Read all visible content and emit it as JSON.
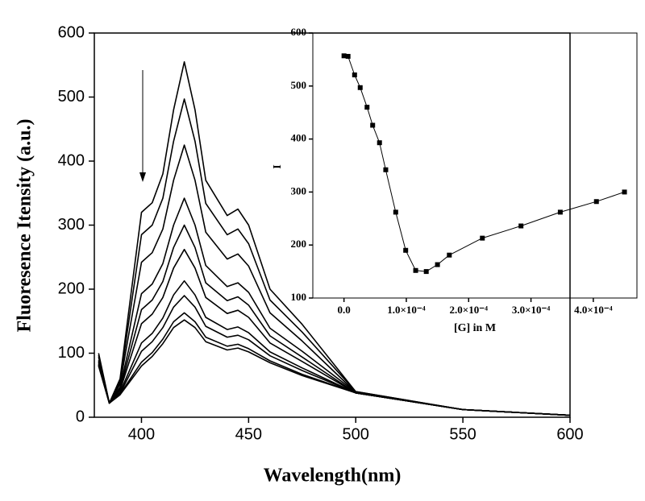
{
  "chart_data": [
    {
      "type": "line",
      "x_label": "Wavelength(nm)",
      "y_label": "Fluoresence Itensity (a.u.)",
      "xlim": [
        378,
        600
      ],
      "xticks": [
        400,
        450,
        500,
        550,
        600
      ],
      "ylim": [
        0,
        600
      ],
      "yticks": [
        0,
        100,
        200,
        300,
        400,
        500,
        600
      ],
      "arrow": "down",
      "x": [
        380,
        385,
        390,
        400,
        405,
        410,
        415,
        420,
        425,
        430,
        440,
        445,
        450,
        460,
        475,
        500,
        550,
        600
      ],
      "series": [
        {
          "color": "#000000",
          "values": [
            100,
            22,
            60,
            320,
            335,
            380,
            480,
            555,
            480,
            370,
            315,
            325,
            300,
            200,
            145,
            40,
            12,
            3
          ]
        },
        {
          "color": "#000000",
          "values": [
            97,
            22,
            56,
            285,
            300,
            342,
            431,
            497,
            431,
            334,
            285,
            294,
            271,
            183,
            133,
            40,
            12,
            3
          ]
        },
        {
          "color": "#000000",
          "values": [
            94,
            22,
            52,
            242,
            257,
            294,
            370,
            425,
            370,
            289,
            247,
            255,
            236,
            163,
            119,
            39,
            12,
            3
          ]
        },
        {
          "color": "#000000",
          "values": [
            89,
            22,
            47,
            193,
            208,
            240,
            300,
            342,
            300,
            237,
            204,
            210,
            195,
            139,
            103,
            39,
            12,
            3
          ]
        },
        {
          "color": "#000000",
          "values": [
            87,
            22,
            44,
            168,
            183,
            212,
            265,
            300,
            265,
            210,
            182,
            188,
            175,
            127,
            94,
            38,
            12,
            3
          ]
        },
        {
          "color": "#000000",
          "values": [
            85,
            22,
            42,
            146,
            161,
            187,
            233,
            262,
            233,
            187,
            162,
            167,
            156,
            116,
            87,
            38,
            12,
            3
          ]
        },
        {
          "color": "#000000",
          "values": [
            83,
            22,
            39,
            116,
            131,
            155,
            191,
            213,
            191,
            156,
            137,
            141,
            132,
            102,
            77,
            38,
            12,
            3
          ]
        },
        {
          "color": "#000000",
          "values": [
            82,
            22,
            37,
            103,
            118,
            140,
            172,
            190,
            172,
            142,
            125,
            128,
            121,
            96,
            73,
            38,
            12,
            3
          ]
        },
        {
          "color": "#000000",
          "values": [
            81,
            22,
            36,
            86,
            101,
            122,
            149,
            163,
            149,
            125,
            111,
            114,
            107,
            88,
            67,
            38,
            12,
            3
          ]
        },
        {
          "color": "#000000",
          "values": [
            80,
            22,
            35,
            80,
            95,
            115,
            140,
            152,
            140,
            118,
            105,
            108,
            102,
            85,
            65,
            38,
            12,
            3
          ]
        }
      ]
    },
    {
      "type": "line",
      "x_label": "[G] in M",
      "y_label": "I",
      "xlim": [
        -5e-05,
        0.00047
      ],
      "xticks": [
        {
          "value": 0,
          "label": "0.0"
        },
        {
          "value": 0.0001,
          "label": "1.0×10⁻⁴"
        },
        {
          "value": 0.0002,
          "label": "2.0×10⁻⁴"
        },
        {
          "value": 0.0003,
          "label": "3.0×10⁻⁴"
        },
        {
          "value": 0.0004,
          "label": "4.0×10⁻⁴"
        }
      ],
      "ylim": [
        100,
        600
      ],
      "yticks": [
        100,
        200,
        300,
        400,
        500,
        600
      ],
      "x": [
        0,
        6.5e-06,
        1.7e-05,
        2.6e-05,
        3.7e-05,
        4.6e-05,
        5.7e-05,
        6.7e-05,
        8.3e-05,
        9.9e-05,
        0.000115,
        0.000132,
        0.00015,
        0.000169,
        0.000222,
        0.000284,
        0.000347,
        0.000405,
        0.00045
      ],
      "series": [
        {
          "color": "#000000",
          "values": [
            557,
            556,
            521,
            497,
            460,
            426,
            393,
            342,
            262,
            190,
            152,
            150,
            163,
            181,
            213,
            236,
            262,
            282,
            300
          ]
        }
      ]
    }
  ]
}
